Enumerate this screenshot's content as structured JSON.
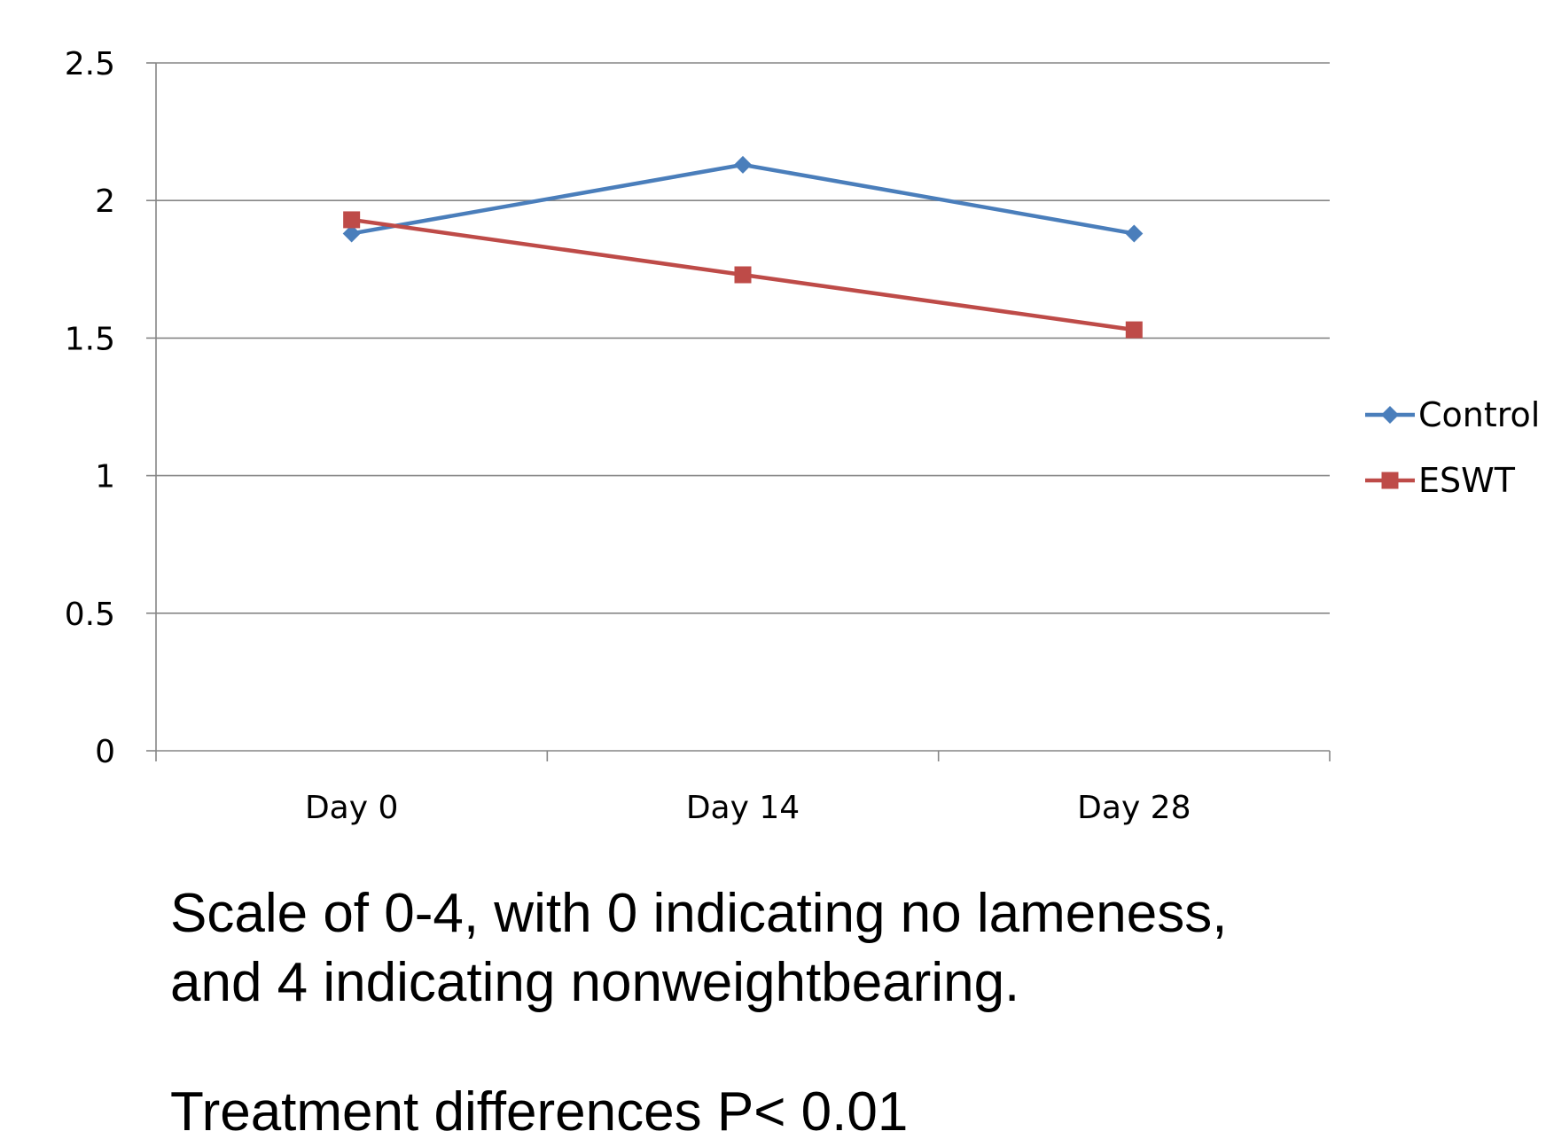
{
  "chart_data": {
    "type": "line",
    "categories": [
      "Day 0",
      "Day 14",
      "Day 28"
    ],
    "series": [
      {
        "name": "Control",
        "values": [
          1.88,
          2.13,
          1.88
        ],
        "color": "#4A7EBB",
        "marker": "diamond"
      },
      {
        "name": "ESWT",
        "values": [
          1.93,
          1.73,
          1.53
        ],
        "color": "#BE4B48",
        "marker": "square"
      }
    ],
    "yticks": [
      "0",
      "0.5",
      "1",
      "1.5",
      "2",
      "2.5"
    ],
    "ylim": [
      0,
      2.5
    ],
    "grid": true,
    "legend": "right",
    "title": "",
    "xlabel": "",
    "ylabel": ""
  },
  "notes": {
    "line1": "Scale of 0-4, with 0 indicating no lameness,",
    "line2": "and 4 indicating nonweightbearing.",
    "line3": "Treatment differences P< 0.01"
  }
}
